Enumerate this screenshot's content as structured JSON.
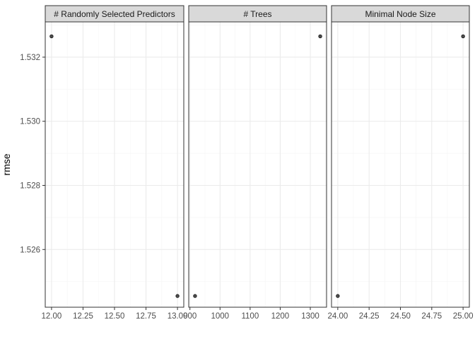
{
  "chart_data": {
    "type": "scatter",
    "ylabel": "rmse",
    "xlabel": "",
    "ylim": [
      1.5242,
      1.5331
    ],
    "y_ticks": [
      1.526,
      1.528,
      1.53,
      1.532
    ],
    "y_tick_labels": [
      "1.526",
      "1.528",
      "1.530",
      "1.532"
    ],
    "grid": true,
    "panels": [
      {
        "name": "# Randomly Selected Predictors",
        "xlim": [
          11.95,
          13.05
        ],
        "x_ticks": [
          12.0,
          12.25,
          12.5,
          12.75,
          13.0
        ],
        "x_tick_labels": [
          "12.00",
          "12.25",
          "12.50",
          "12.75",
          "13.00"
        ],
        "points": [
          {
            "x": 12.0,
            "y": 1.53265
          },
          {
            "x": 13.0,
            "y": 1.52455
          }
        ]
      },
      {
        "name": "# Trees",
        "xlim": [
          896,
          1354
        ],
        "x_ticks": [
          900,
          1000,
          1100,
          1200,
          1300
        ],
        "x_tick_labels": [
          "900",
          "1000",
          "1100",
          "1200",
          "1300"
        ],
        "points": [
          {
            "x": 917,
            "y": 1.52455
          },
          {
            "x": 1333,
            "y": 1.53265
          }
        ]
      },
      {
        "name": "Minimal Node Size",
        "xlim": [
          23.95,
          25.05
        ],
        "x_ticks": [
          24.0,
          24.25,
          24.5,
          24.75,
          25.0
        ],
        "x_tick_labels": [
          "24.00",
          "24.25",
          "24.50",
          "24.75",
          "25.00"
        ],
        "points": [
          {
            "x": 24.0,
            "y": 1.52455
          },
          {
            "x": 25.0,
            "y": 1.53265
          }
        ]
      }
    ],
    "colors": {
      "strip_fill": "#d9d9d9",
      "panel_border": "#333333",
      "grid_major": "#ebebeb",
      "grid_minor": "#f5f5f5",
      "point_fill": "#4d4d4d",
      "point_stroke": "#1a1a1a"
    }
  }
}
